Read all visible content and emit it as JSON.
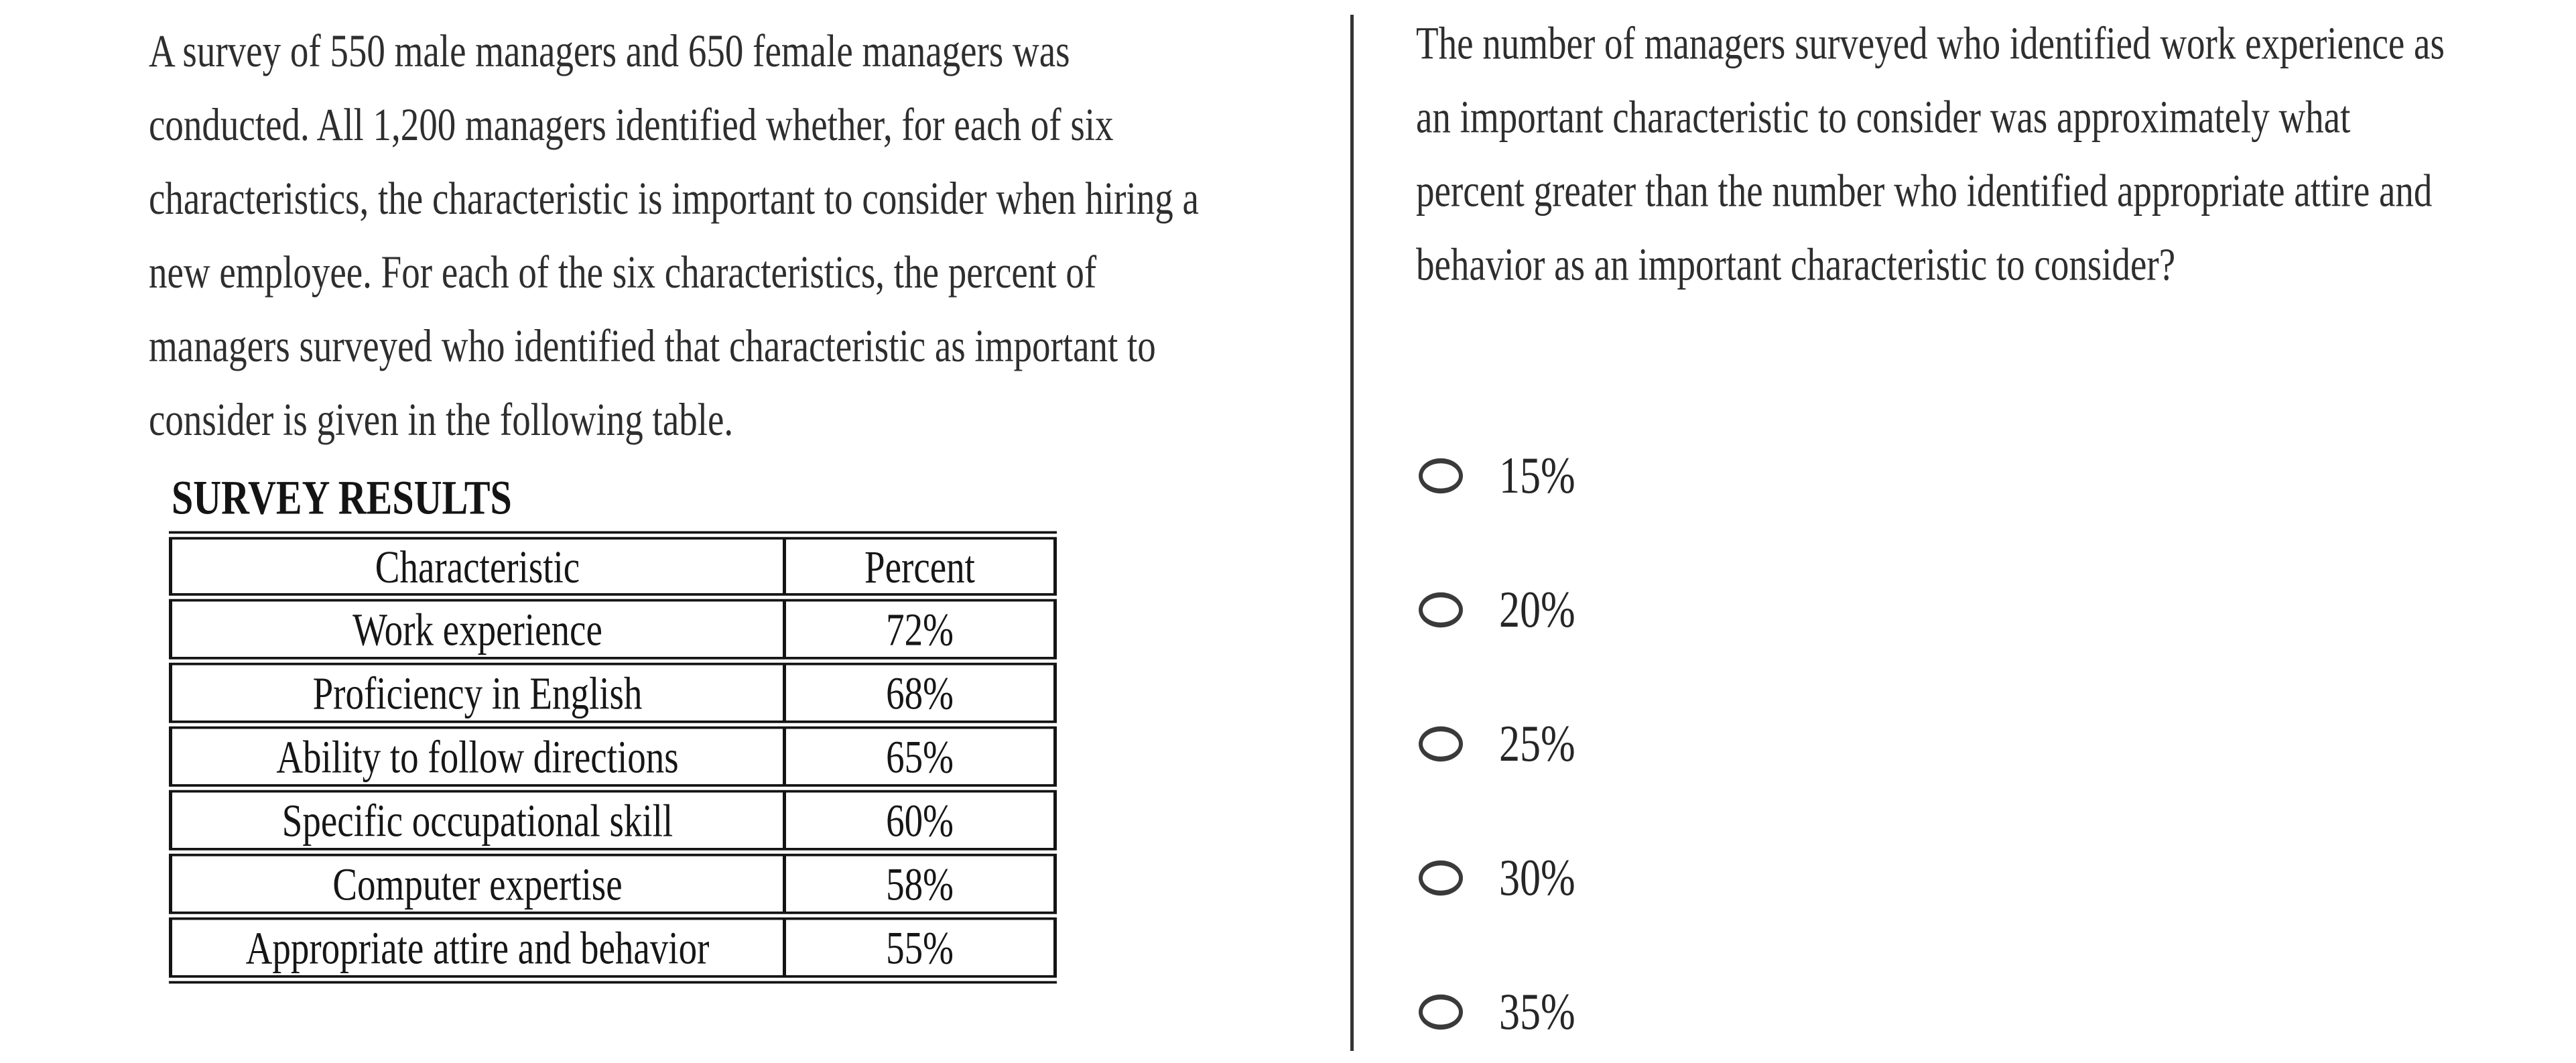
{
  "left_panel": {
    "paragraph": "A survey of 550 male managers and 650 female managers was conducted. All 1,200 managers identified whether, for each of six characteristics, the characteristic is important to consider when hiring a new employee. For each of the six characteristics, the percent of managers surveyed who identified that characteristic as important to consider is given in the following table.",
    "table": {
      "title": "SURVEY RESULTS",
      "columns": [
        "Characteristic",
        "Percent"
      ],
      "rows": [
        {
          "characteristic": "Work experience",
          "percent": "72%"
        },
        {
          "characteristic": "Proficiency in English",
          "percent": "68%"
        },
        {
          "characteristic": "Ability to follow directions",
          "percent": "65%"
        },
        {
          "characteristic": "Specific occupational skill",
          "percent": "60%"
        },
        {
          "characteristic": "Computer expertise",
          "percent": "58%"
        },
        {
          "characteristic": "Appropriate attire and behavior",
          "percent": "55%"
        }
      ]
    }
  },
  "right_panel": {
    "question": "The number of managers surveyed who identified work experience as an important characteristic to consider was approximately what percent greater than the number who identified appropriate attire and behavior as an important characteristic to consider?",
    "options": [
      {
        "label": "15%",
        "selected": false
      },
      {
        "label": "20%",
        "selected": false
      },
      {
        "label": "25%",
        "selected": false
      },
      {
        "label": "30%",
        "selected": false
      },
      {
        "label": "35%",
        "selected": false
      }
    ]
  },
  "colors": {
    "background": "#ffffff",
    "text": "#2e2e2e",
    "table_border": "#141414",
    "divider": "#333333",
    "radio_border": "#3a3a3a"
  }
}
